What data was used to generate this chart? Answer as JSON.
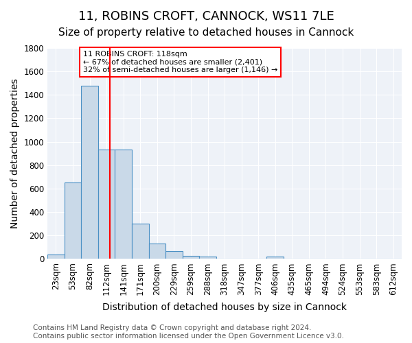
{
  "title": "11, ROBINS CROFT, CANNOCK, WS11 7LE",
  "subtitle": "Size of property relative to detached houses in Cannock",
  "xlabel": "Distribution of detached houses by size in Cannock",
  "ylabel": "Number of detached properties",
  "bar_labels": [
    "23sqm",
    "53sqm",
    "82sqm",
    "112sqm",
    "141sqm",
    "171sqm",
    "200sqm",
    "229sqm",
    "259sqm",
    "288sqm",
    "318sqm",
    "347sqm",
    "377sqm",
    "406sqm",
    "435sqm",
    "465sqm",
    "494sqm",
    "524sqm",
    "553sqm",
    "583sqm",
    "612sqm"
  ],
  "bar_values": [
    35,
    650,
    1480,
    935,
    935,
    300,
    130,
    65,
    25,
    20,
    5,
    5,
    5,
    20,
    0,
    0,
    0,
    0,
    0,
    0,
    0
  ],
  "bar_color": "#c9d9e8",
  "bar_edge_color": "#4a90c4",
  "vline_x": 3,
  "vline_color": "red",
  "annotation_text": "11 ROBINS CROFT: 118sqm\n← 67% of detached houses are smaller (2,401)\n32% of semi-detached houses are larger (1,146) →",
  "annotation_box_color": "white",
  "annotation_box_edge_color": "red",
  "ylim": [
    0,
    1800
  ],
  "yticks": [
    0,
    200,
    400,
    600,
    800,
    1000,
    1200,
    1400,
    1600,
    1800
  ],
  "footnote": "Contains HM Land Registry data © Crown copyright and database right 2024.\nContains public sector information licensed under the Open Government Licence v3.0.",
  "background_color": "#eef2f8",
  "plot_bg_color": "#eef2f8",
  "grid_color": "white",
  "title_fontsize": 13,
  "subtitle_fontsize": 11,
  "xlabel_fontsize": 10,
  "ylabel_fontsize": 10,
  "tick_fontsize": 8.5,
  "footnote_fontsize": 7.5
}
